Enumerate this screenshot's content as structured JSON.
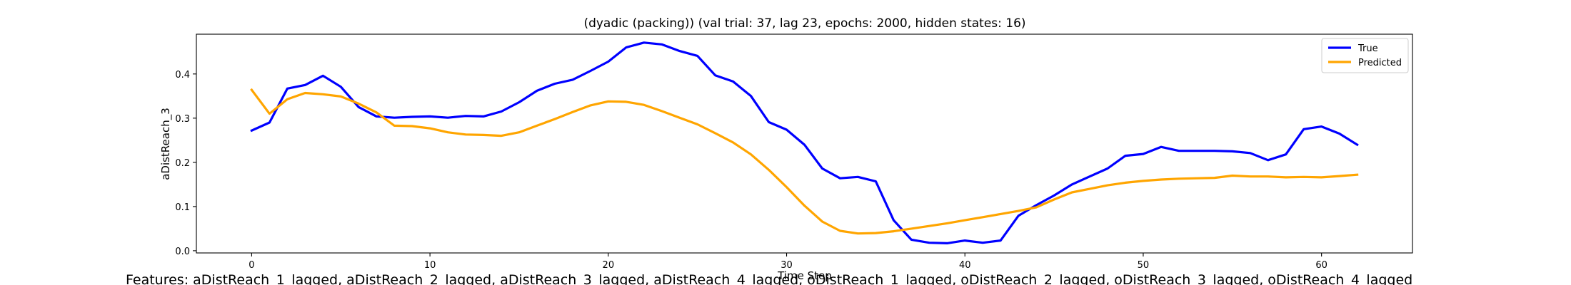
{
  "chart_data": {
    "type": "line",
    "title": "(dyadic (packing)) (val trial: 37, lag 23, epochs: 2000, hidden states: 16)",
    "xlabel": "Time Step",
    "ylabel": "aDistReach_3",
    "xlim": [
      -3.1,
      65.1
    ],
    "ylim": [
      -0.005,
      0.49
    ],
    "xticks": [
      0,
      10,
      20,
      30,
      40,
      50,
      60
    ],
    "yticks": [
      0.0,
      0.1,
      0.2,
      0.3,
      0.4
    ],
    "ytick_labels": [
      "0.0",
      "0.1",
      "0.2",
      "0.3",
      "0.4"
    ],
    "legend_position": "top-right",
    "grid": false,
    "series": [
      {
        "name": "True",
        "color": "#0000ff",
        "values": [
          0.272,
          0.29,
          0.367,
          0.375,
          0.396,
          0.371,
          0.325,
          0.304,
          0.301,
          0.303,
          0.304,
          0.301,
          0.305,
          0.304,
          0.315,
          0.336,
          0.362,
          0.378,
          0.387,
          0.407,
          0.428,
          0.46,
          0.471,
          0.467,
          0.452,
          0.441,
          0.397,
          0.383,
          0.35,
          0.291,
          0.274,
          0.24,
          0.186,
          0.164,
          0.167,
          0.157,
          0.069,
          0.025,
          0.018,
          0.017,
          0.023,
          0.018,
          0.023,
          0.079,
          0.103,
          0.125,
          0.15,
          0.168,
          0.186,
          0.215,
          0.219,
          0.235,
          0.226,
          0.226,
          0.226,
          0.225,
          0.221,
          0.205,
          0.218,
          0.275,
          0.281,
          0.265,
          0.24
        ]
      },
      {
        "name": "Predicted",
        "color": "#ffa500",
        "values": [
          0.364,
          0.31,
          0.343,
          0.357,
          0.354,
          0.349,
          0.333,
          0.313,
          0.283,
          0.282,
          0.277,
          0.268,
          0.263,
          0.262,
          0.26,
          0.268,
          0.283,
          0.298,
          0.314,
          0.329,
          0.338,
          0.337,
          0.33,
          0.316,
          0.301,
          0.286,
          0.266,
          0.245,
          0.218,
          0.183,
          0.144,
          0.102,
          0.066,
          0.045,
          0.039,
          0.04,
          0.044,
          0.05,
          0.056,
          0.062,
          0.069,
          0.076,
          0.083,
          0.09,
          0.098,
          0.116,
          0.132,
          0.14,
          0.148,
          0.154,
          0.158,
          0.161,
          0.163,
          0.164,
          0.165,
          0.17,
          0.168,
          0.168,
          0.166,
          0.167,
          0.166,
          0.169,
          0.172
        ]
      }
    ]
  },
  "features_text": "Features: aDistReach_1_lagged, aDistReach_2_lagged, aDistReach_3_lagged, aDistReach_4_lagged, oDistReach_1_lagged, oDistReach_2_lagged, oDistReach_3_lagged, oDistReach_4_lagged"
}
